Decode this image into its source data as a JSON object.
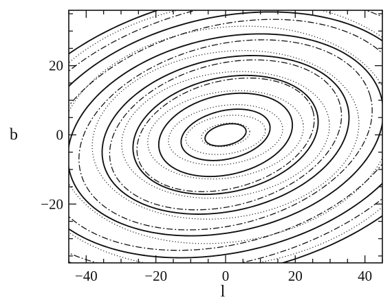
{
  "chart_data": {
    "type": "contour",
    "title": "",
    "xlabel": "l",
    "ylabel": "b",
    "xlim": [
      -45,
      45
    ],
    "ylim": [
      -37,
      36
    ],
    "xticks": [
      -40,
      -20,
      0,
      20,
      40
    ],
    "yticks": [
      -20,
      0,
      20
    ],
    "xtick_labels": [
      "−40",
      "−20",
      "0",
      "20",
      "40"
    ],
    "ytick_labels": [
      "−20",
      "0",
      "20"
    ],
    "grid": false,
    "series": [
      {
        "style": "solid",
        "center": [
          0,
          0
        ],
        "tilt_deg": 13,
        "contours": [
          {
            "a": 6,
            "b": 3
          },
          {
            "a": 13,
            "b": 7
          },
          {
            "a": 19.5,
            "b": 11.5
          },
          {
            "a": 27,
            "b": 16.5
          },
          {
            "a": 36,
            "b": 22
          },
          {
            "a": 46,
            "b": 28
          },
          {
            "a": 57,
            "b": 34
          },
          {
            "a": 68,
            "b": 40
          }
        ]
      },
      {
        "style": "dotted",
        "center": [
          0,
          0
        ],
        "tilt_deg": 8,
        "contours": [
          {
            "a": 7,
            "b": 3.3
          },
          {
            "a": 11.5,
            "b": 5.5
          },
          {
            "a": 16.5,
            "b": 8.5
          },
          {
            "a": 22.5,
            "b": 12.5
          },
          {
            "a": 30,
            "b": 18
          },
          {
            "a": 38.5,
            "b": 24
          },
          {
            "a": 48,
            "b": 31
          },
          {
            "a": 59,
            "b": 38
          }
        ]
      },
      {
        "style": "dashed",
        "center": [
          0,
          0
        ],
        "tilt_deg": 15,
        "contours": [
          {
            "a": 26,
            "b": 15.5
          },
          {
            "a": 34,
            "b": 20.5
          },
          {
            "a": 43,
            "b": 26
          },
          {
            "a": 53,
            "b": 31.5
          },
          {
            "a": 64,
            "b": 37
          }
        ]
      }
    ]
  }
}
